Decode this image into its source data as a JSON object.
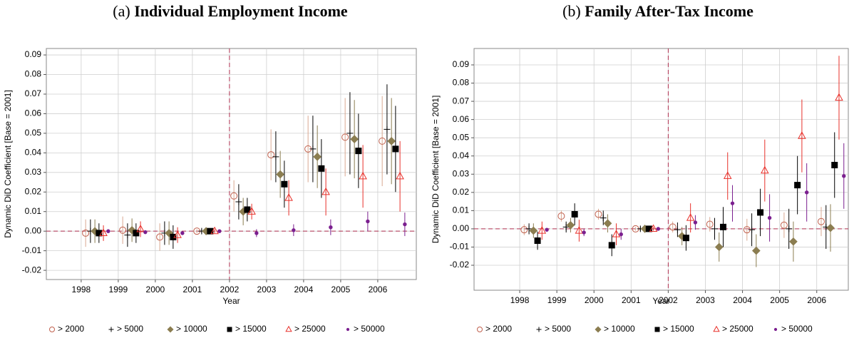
{
  "chart_data": [
    {
      "type": "errorbar",
      "panel_label": "(a)",
      "title": "Individual Employment Income",
      "xlabel": "Year",
      "ylabel": "Dynamic DiD Coefficient [Base = 2001]",
      "x": [
        1998,
        1999,
        2000,
        2001,
        2002,
        2003,
        2004,
        2005,
        2006
      ],
      "xlim": [
        1997.06,
        2007.04
      ],
      "xticks": [
        1998,
        1999,
        2000,
        2001,
        2002,
        2003,
        2004,
        2005,
        2006
      ],
      "ylim": [
        -0.0247,
        0.0933
      ],
      "yticks": [
        -0.02,
        -0.01,
        {
          "value": 0,
          "label": "0.00"
        },
        0.01,
        0.02,
        0.03,
        0.04,
        0.05,
        0.06,
        0.07,
        0.08,
        0.09
      ],
      "grid": true,
      "vline": 2002,
      "hline": 0,
      "series": [
        {
          "name": "> 2000",
          "color": "#c0604d",
          "marker": "circle-open",
          "values": [
            -0.001,
            0.0005,
            -0.003,
            0,
            0.018,
            0.039,
            0.042,
            0.048,
            0.046
          ],
          "errors": [
            0.007,
            0.007,
            0.007,
            0.001,
            0.008,
            0.013,
            0.017,
            0.02,
            0.023
          ]
        },
        {
          "name": "> 5000",
          "color": "#000000",
          "marker": "plus",
          "values": [
            0,
            -0.002,
            -0.001,
            0,
            0.015,
            0.038,
            0.042,
            0.05,
            0.052
          ],
          "errors": [
            0.006,
            0.006,
            0.006,
            0.001,
            0.009,
            0.013,
            0.017,
            0.021,
            0.023
          ]
        },
        {
          "name": "> 10000",
          "color": "#8b7d50",
          "marker": "diamond",
          "values": [
            0,
            0.0005,
            -0.001,
            0,
            0.01,
            0.029,
            0.038,
            0.047,
            0.046
          ],
          "errors": [
            0.006,
            0.006,
            0.006,
            0.001,
            0.007,
            0.012,
            0.016,
            0.02,
            0.022
          ]
        },
        {
          "name": "> 15000",
          "color": "#000000",
          "marker": "square",
          "values": [
            -0.001,
            -0.001,
            -0.003,
            0,
            0.011,
            0.024,
            0.032,
            0.041,
            0.042
          ],
          "errors": [
            0.005,
            0.005,
            0.006,
            0.001,
            0.006,
            0.012,
            0.015,
            0.019,
            0.022
          ]
        },
        {
          "name": "> 25000",
          "color": "#e8302a",
          "marker": "triangle-open",
          "values": [
            -0.001,
            0.001,
            -0.002,
            0,
            0.01,
            0.017,
            0.02,
            0.028,
            0.028
          ],
          "errors": [
            0.004,
            0.004,
            0.004,
            0.001,
            0.004,
            0.009,
            0.012,
            0.016,
            0.018
          ]
        },
        {
          "name": "> 50000",
          "color": "#7b1f8f",
          "marker": "circle",
          "values": [
            0,
            -0.0005,
            -0.001,
            0,
            -0.001,
            0.0005,
            0.002,
            0.005,
            0.0035
          ],
          "errors": [
            0.001,
            0.001,
            0.001,
            0.0005,
            0.002,
            0.003,
            0.004,
            0.005,
            0.006
          ]
        }
      ]
    },
    {
      "type": "errorbar",
      "panel_label": "(b)",
      "title": "Family After-Tax Income",
      "xlabel": "Year",
      "ylabel": "Dynamic DiD Coefficient [Base = 2001]",
      "x": [
        1998,
        1999,
        2000,
        2001,
        2002,
        2003,
        2004,
        2005,
        2006
      ],
      "xlim": [
        1996.77,
        2006.85
      ],
      "xticks": [
        1998,
        1999,
        2000,
        2001,
        2002,
        2003,
        2004,
        2005,
        2006
      ],
      "ylim": [
        -0.0337,
        0.099
      ],
      "yticks": [
        -0.02,
        -0.01,
        {
          "value": 0,
          "label": "0.00"
        },
        0.01,
        0.02,
        0.03,
        0.04,
        0.05,
        0.06,
        0.07,
        0.08,
        0.09
      ],
      "grid": true,
      "vline": 2002,
      "hline": 0,
      "series": [
        {
          "name": "> 2000",
          "color": "#c0604d",
          "marker": "circle-open",
          "values": [
            -0.0005,
            0.007,
            0.008,
            0,
            0.001,
            0.0025,
            -0.0005,
            0.002,
            0.004
          ],
          "errors": [
            0.003,
            0.003,
            0.003,
            0.001,
            0.003,
            0.004,
            0.006,
            0.007,
            0.008
          ]
        },
        {
          "name": "> 5000",
          "color": "#000000",
          "marker": "plus",
          "values": [
            0,
            0.001,
            0.006,
            0,
            -0.0005,
            0,
            -0.0005,
            0,
            0.001
          ],
          "errors": [
            0.003,
            0.003,
            0.004,
            0.001,
            0.004,
            0.006,
            0.009,
            0.011,
            0.012
          ]
        },
        {
          "name": "> 10000",
          "color": "#8b7d50",
          "marker": "diamond",
          "values": [
            -0.001,
            0.002,
            0.003,
            0,
            -0.004,
            -0.01,
            -0.012,
            -0.007,
            0.0005
          ],
          "errors": [
            0.004,
            0.004,
            0.005,
            0.001,
            0.005,
            0.008,
            0.009,
            0.011,
            0.013
          ]
        },
        {
          "name": "> 15000",
          "color": "#000000",
          "marker": "square",
          "values": [
            -0.0065,
            0.008,
            -0.009,
            0,
            -0.005,
            0.001,
            0.009,
            0.024,
            0.035
          ],
          "errors": [
            0.005,
            0.006,
            0.006,
            0.001,
            0.007,
            0.011,
            0.013,
            0.016,
            0.018
          ]
        },
        {
          "name": "> 25000",
          "color": "#e8302a",
          "marker": "triangle-open",
          "values": [
            -0.001,
            -0.001,
            -0.003,
            0,
            0.006,
            0.029,
            0.032,
            0.051,
            0.072
          ],
          "errors": [
            0.005,
            0.006,
            0.006,
            0.001,
            0.008,
            0.013,
            0.017,
            0.02,
            0.023
          ]
        },
        {
          "name": "> 50000",
          "color": "#7b1f8f",
          "marker": "circle",
          "values": [
            -0.0005,
            -0.002,
            -0.003,
            0,
            0.0035,
            0.014,
            0.006,
            0.02,
            0.029
          ],
          "errors": [
            0.001,
            0.002,
            0.003,
            0.001,
            0.004,
            0.01,
            0.013,
            0.016,
            0.018
          ]
        }
      ]
    }
  ]
}
